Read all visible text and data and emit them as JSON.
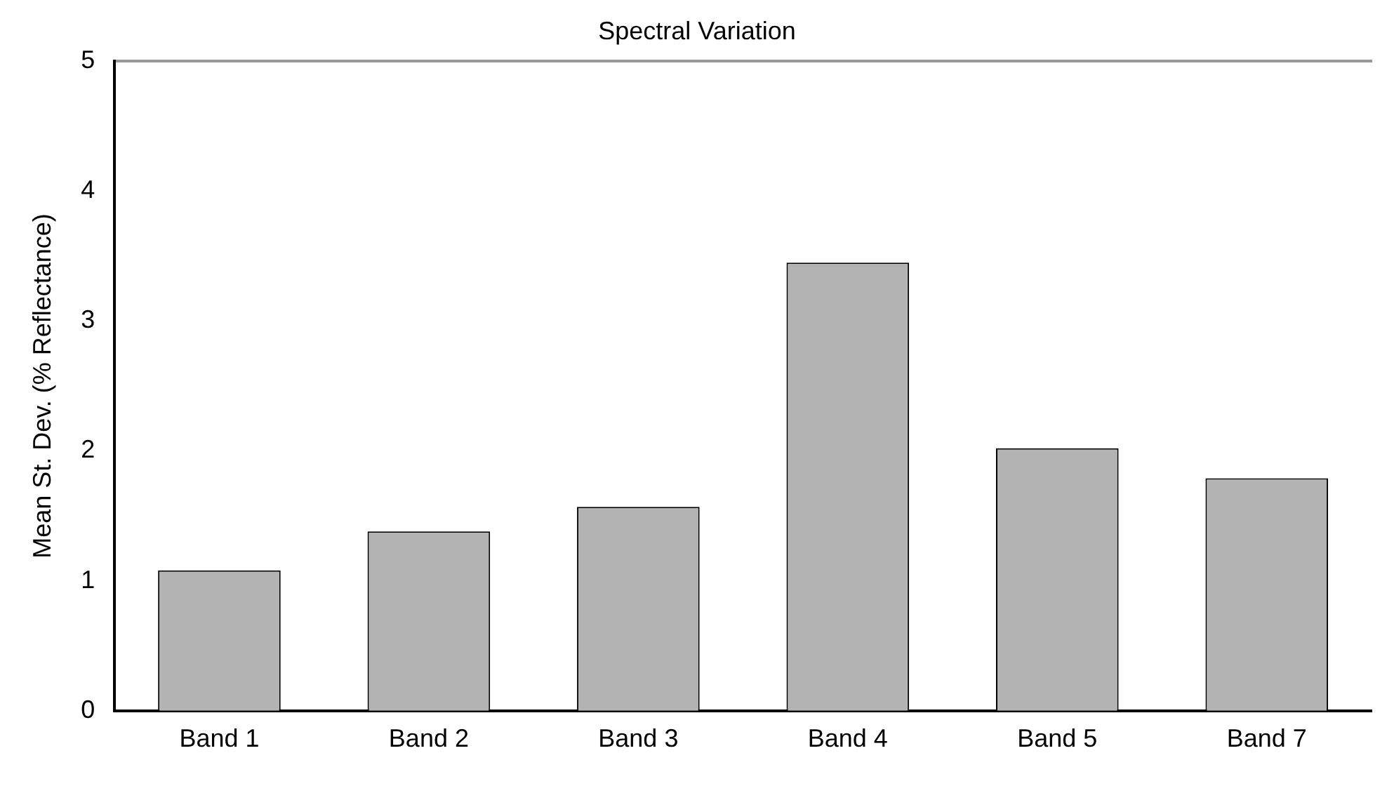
{
  "chart_data": {
    "type": "bar",
    "title": "Spectral Variation",
    "ylabel": "Mean St. Dev. (% Reflectance)",
    "categories": [
      "Band 1",
      "Band 2",
      "Band 3",
      "Band 4",
      "Band 5",
      "Band 7"
    ],
    "values": [
      1.08,
      1.38,
      1.57,
      3.45,
      2.02,
      1.79
    ],
    "color": "#b3b3b3",
    "ylim": [
      0,
      5
    ],
    "yticks": [
      0,
      1,
      2,
      3,
      4,
      5
    ],
    "grid": false,
    "legend": false
  }
}
